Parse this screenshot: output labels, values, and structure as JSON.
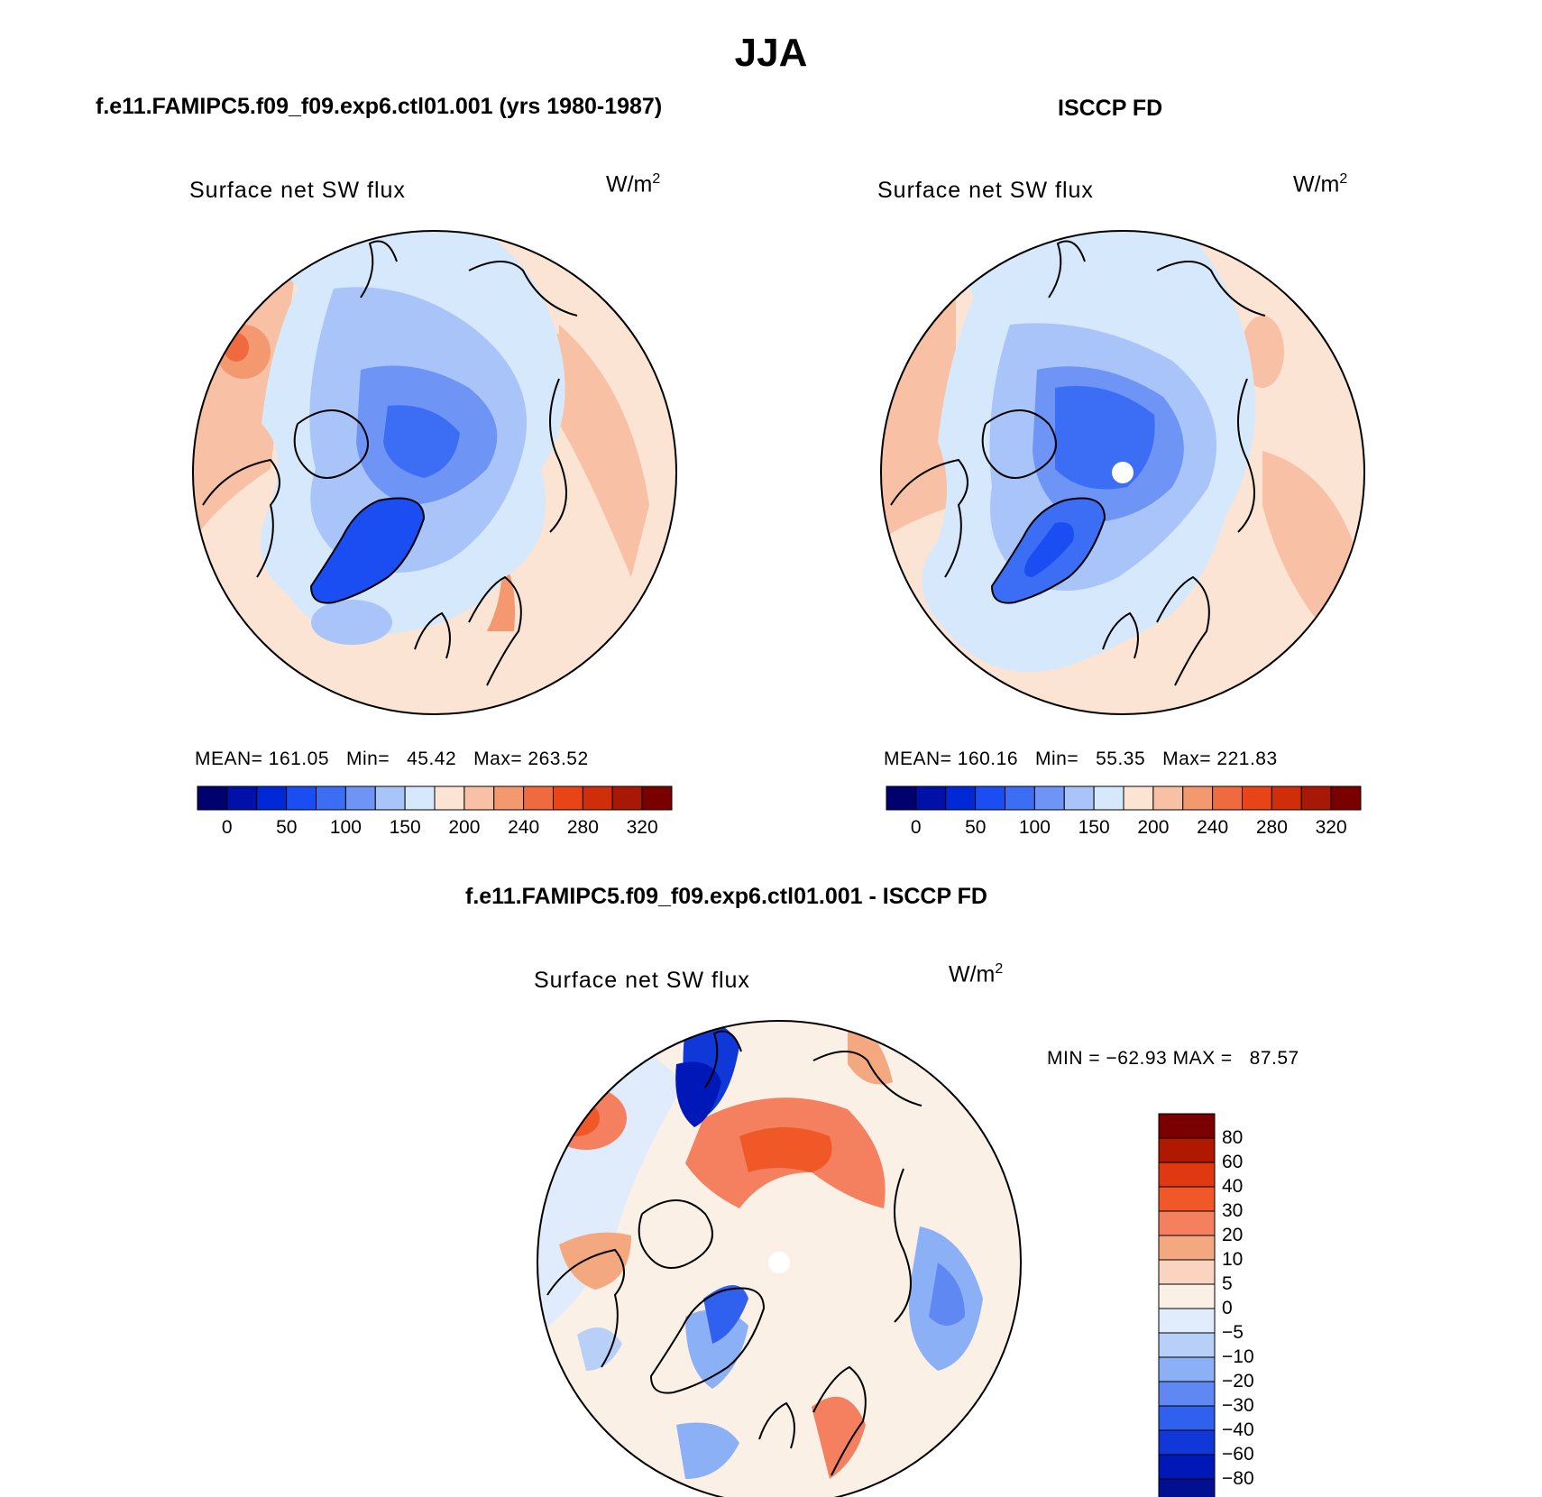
{
  "figure": {
    "season": "JJA",
    "panels": [
      {
        "id": "model",
        "case_title": "f.e11.FAMIPC5.f09_f09.exp6.ctl01.001 (yrs 1980-1987)",
        "plot_title": "Surface net SW flux",
        "units_base": "W/m",
        "units_exp": "2",
        "stats_text": "MEAN= 161.05   Min=   45.42   Max= 263.52"
      },
      {
        "id": "obs",
        "case_title": "ISCCP FD",
        "plot_title": "Surface net SW flux",
        "units_base": "W/m",
        "units_exp": "2",
        "stats_text": "MEAN= 160.16   Min=   55.35   Max= 221.83"
      },
      {
        "id": "diff",
        "case_title": "f.e11.FAMIPC5.f09_f09.exp6.ctl01.001 - ISCCP FD",
        "plot_title": "Surface net SW flux",
        "units_base": "W/m",
        "units_exp": "2",
        "stats_text": "MIN = −62.93 MAX =   87.57"
      }
    ],
    "abs_colorbar": {
      "colors": [
        "#00006e",
        "#0010a8",
        "#0028d6",
        "#1a4ef2",
        "#3c6ef5",
        "#6e94f5",
        "#a8c4f8",
        "#d6e8fb",
        "#fbe4d4",
        "#f8c0a4",
        "#f49870",
        "#f06a40",
        "#e84418",
        "#d02e0a",
        "#a81806",
        "#7a0000"
      ],
      "labels": [
        "0",
        "50",
        "100",
        "150",
        "200",
        "240",
        "280",
        "320"
      ]
    },
    "diff_colorbar": {
      "colors": [
        "#7a0000",
        "#b01800",
        "#e03810",
        "#f05828",
        "#f48060",
        "#f4a880",
        "#fad4c0",
        "#fbf0e6",
        "#e0ecfb",
        "#b8d0f8",
        "#8cb0f5",
        "#6088f2",
        "#3060ee",
        "#1038d8",
        "#0018b8",
        "#001090"
      ],
      "labels": [
        "80",
        "60",
        "40",
        "30",
        "20",
        "10",
        "5",
        "0",
        "−5",
        "−10",
        "−20",
        "−30",
        "−40",
        "−60",
        "−80"
      ]
    }
  }
}
